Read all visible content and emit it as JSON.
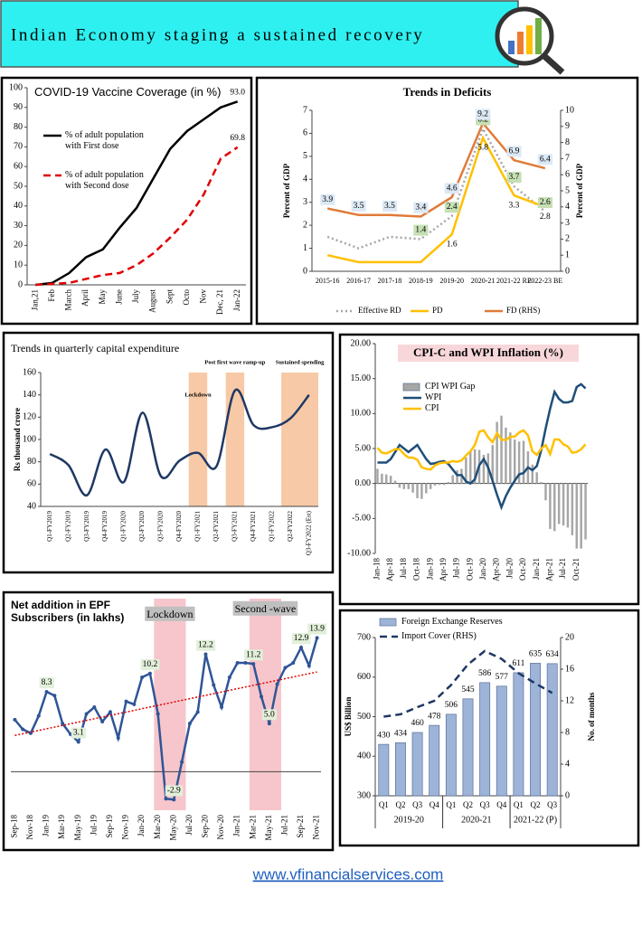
{
  "header": {
    "title": "Indian Economy staging a sustained recovery"
  },
  "footer": {
    "url": "www.vfinancialservices.com"
  },
  "chart_data": [
    {
      "type": "line",
      "title": "COVID-19 Vaccine Coverage (in %)",
      "categories": [
        "Jan,21",
        "Feb",
        "March",
        "April",
        "May",
        "June",
        "July",
        "August",
        "Sept",
        "Octo",
        "Nov",
        "Dec, 21",
        "Jan-22"
      ],
      "ylim": [
        0,
        100
      ],
      "yticks": [
        0,
        10,
        20,
        30,
        40,
        50,
        60,
        70,
        80,
        90,
        100
      ],
      "series": [
        {
          "name": "% of adult population with First dose",
          "color": "#000000",
          "values": [
            0,
            1,
            6,
            14,
            18,
            29,
            39,
            54,
            69,
            78,
            84,
            90,
            93
          ],
          "value_labels": [
            null,
            null,
            null,
            null,
            null,
            null,
            null,
            null,
            null,
            null,
            null,
            null,
            "93.0"
          ]
        },
        {
          "name": "% of adult population with Second dose",
          "color": "#e00000",
          "dash": "dashed",
          "values": [
            0,
            0.5,
            1,
            3,
            5,
            6,
            10,
            16,
            24,
            33,
            46,
            64,
            69.8
          ],
          "value_labels": [
            null,
            null,
            null,
            null,
            null,
            null,
            null,
            null,
            null,
            null,
            null,
            null,
            "69.8"
          ]
        }
      ]
    },
    {
      "type": "line",
      "title": "Trends in Deficits",
      "categories": [
        "2015-16",
        "2016-17",
        "2017-18",
        "2018-19",
        "2019-20",
        "2020-21",
        "2021-22 RE",
        "2022-23 BE"
      ],
      "ylim": [
        0,
        7
      ],
      "yticks": [
        0,
        1,
        2,
        3,
        4,
        5,
        6,
        7
      ],
      "ylabel": "Percent of GDP",
      "y2lim": [
        0,
        10
      ],
      "y2ticks": [
        0,
        1,
        2,
        3,
        4,
        5,
        6,
        7,
        8,
        9,
        10
      ],
      "y2label": "Percent of GDP",
      "series": [
        {
          "name": "Effective RD",
          "color": "#a6a6a6",
          "dash": "dotted",
          "values": [
            1.5,
            1.0,
            1.5,
            1.4,
            2.4,
            6.2,
            3.7,
            2.6
          ],
          "value_labels": [
            null,
            null,
            null,
            "1.4",
            "2.4",
            "6.2",
            "3.7",
            "2.6"
          ],
          "label_color": "#c6e0b4"
        },
        {
          "name": "PD",
          "color": "#ffc000",
          "values": [
            0.7,
            0.4,
            0.4,
            0.4,
            1.6,
            5.8,
            3.3,
            2.8
          ],
          "value_labels": [
            null,
            null,
            null,
            null,
            "1.6",
            "5.8",
            "3.3",
            "2.8"
          ],
          "label_position": "below"
        },
        {
          "name": "FD (RHS)",
          "color": "#e07b39",
          "axis": "y2",
          "values": [
            3.9,
            3.5,
            3.5,
            3.4,
            4.6,
            9.2,
            6.9,
            6.4
          ],
          "data_labels": true,
          "label_color": "#dce9f5"
        }
      ]
    },
    {
      "type": "line",
      "title": "Trends in quarterly capital expenditure",
      "smooth": true,
      "categories": [
        "Q1-FY2019",
        "Q2-FY2019",
        "Q3-FY2019",
        "Q4-FY2019",
        "Q1-FY2020",
        "Q2-FY2020",
        "Q3-FY2020",
        "Q4-FY2020",
        "Q1-FY2021",
        "Q2-FY2021",
        "Q3-FY2021",
        "Q4-FY2021",
        "Q1-FY2022",
        "Q2-FY2022",
        "Q3-FY2022 (Est)"
      ],
      "ylim": [
        40,
        160
      ],
      "yticks": [
        40,
        60,
        80,
        100,
        120,
        140,
        160
      ],
      "ylabel": "Rs thousand crore",
      "band_color": "#f7c9a6",
      "annotations": [
        {
          "text": "Lockdown",
          "span": [
            8,
            8
          ]
        },
        {
          "text": "Post first wave ramp-up",
          "span": [
            10,
            10
          ]
        },
        {
          "text": "Sustained spending",
          "span": [
            13,
            14
          ]
        }
      ],
      "series": [
        {
          "name": "Capital expenditure",
          "color": "#1f3864",
          "values": [
            87,
            77,
            50,
            91,
            62,
            124,
            67,
            81,
            88,
            76,
            144,
            113,
            111,
            119,
            140
          ]
        }
      ]
    },
    {
      "type": "combo",
      "title": "CPI-C and WPI Inflation (%)",
      "categories": [
        "Jan-18",
        null,
        null,
        "Apr-18",
        null,
        null,
        "Jul-18",
        null,
        null,
        "Oct-18",
        null,
        null,
        "Jan-19",
        null,
        null,
        "Apr-19",
        null,
        null,
        "Jul-19",
        null,
        null,
        "Oct-19",
        null,
        null,
        "Jan-20",
        null,
        null,
        "Apr-20",
        null,
        null,
        "Jul-20",
        null,
        null,
        "Oct-20",
        null,
        null,
        "Jan-21",
        null,
        null,
        "Apr-21",
        null,
        null,
        "Jul-21",
        null,
        null,
        "Oct-21",
        null,
        null
      ],
      "ylim": [
        -10,
        20
      ],
      "yticks": [
        {
          "value": -10,
          "label": "-10.00"
        },
        {
          "value": -5,
          "label": "-5.00"
        },
        {
          "value": 0,
          "label": "0.00"
        },
        {
          "value": 5,
          "label": "5.00"
        },
        {
          "value": 10,
          "label": "10.00"
        },
        {
          "value": 15,
          "label": "15.00"
        },
        {
          "value": 20,
          "label": "20.00"
        }
      ],
      "series": [
        {
          "name": "CPI WPI Gap",
          "type": "bar",
          "color": "#a6a6a6",
          "values": [
            2.1,
            1.4,
            1.3,
            1.1,
            0.4,
            -0.6,
            -0.8,
            -0.8,
            -1.3,
            -2.1,
            -2.2,
            -1.4,
            -0.8,
            -0.3,
            -0.2,
            -0.2,
            0.2,
            1.2,
            1.9,
            2.1,
            3.7,
            4.6,
            4.9,
            4.8,
            4.1,
            4.3,
            5.5,
            8.8,
            9.7,
            8.0,
            7.3,
            6.3,
            6.0,
            6.1,
            4.6,
            2.7,
            1.6,
            0.2,
            -2.4,
            -6.5,
            -6.8,
            -5.8,
            -6.0,
            -6.3,
            -7.4,
            -9.3,
            -9.3,
            -8.0
          ]
        },
        {
          "name": "WPI",
          "color": "#1f4e79",
          "values": [
            3,
            3,
            3,
            3.5,
            4.5,
            5.5,
            5,
            4.5,
            5,
            5.5,
            4.5,
            3.5,
            2.8,
            2.9,
            3.1,
            3.2,
            2.8,
            2.0,
            1.2,
            1.2,
            0.3,
            0,
            0.6,
            2.6,
            3.5,
            2.3,
            0.4,
            -1.6,
            -3.4,
            -1.8,
            -0.6,
            0.4,
            1.3,
            1.5,
            2.3,
            1.9,
            2.5,
            4.8,
            7.9,
            10.7,
            13.1,
            12.1,
            11.6,
            11.6,
            11.8,
            13.8,
            14.2,
            13.6
          ]
        },
        {
          "name": "CPI",
          "color": "#ffc000",
          "values": [
            5.1,
            4.4,
            4.3,
            4.6,
            4.9,
            4.9,
            4.2,
            3.7,
            3.7,
            3.4,
            2.3,
            2.1,
            2.0,
            2.6,
            2.9,
            3.0,
            3.0,
            3.2,
            3.1,
            3.3,
            4.0,
            4.6,
            5.5,
            7.4,
            7.6,
            6.6,
            5.9,
            7.2,
            6.3,
            6.2,
            6.7,
            6.7,
            7.3,
            7.6,
            6.9,
            4.6,
            4.1,
            5.0,
            5.5,
            4.2,
            6.3,
            6.3,
            5.6,
            5.3,
            4.4,
            4.5,
            4.9,
            5.6
          ]
        }
      ]
    },
    {
      "type": "line",
      "title": "Net addition in EPF Subscribers (in lakhs)",
      "markers": true,
      "trendline": true,
      "trend_color": "#e00000",
      "categories": [
        "Sep-18",
        null,
        "Nov-18",
        null,
        "Jan-19",
        null,
        "Mar-19",
        null,
        "May-19",
        null,
        "Jul-19",
        null,
        "Sep-19",
        null,
        "Nov-19",
        null,
        "Jan-20",
        null,
        "Mar-20",
        null,
        "May-20",
        null,
        "Jul-20",
        null,
        "Sep-20",
        null,
        "Nov-20",
        null,
        "Jan-21",
        null,
        "Mar-21",
        null,
        "May-21",
        null,
        "Jul-21",
        null,
        "Sep-21",
        null,
        "Nov-21"
      ],
      "ylim": [
        -4,
        16
      ],
      "band_color": "#f6c6cc",
      "annotations": [
        {
          "text": "Lockdown",
          "span": [
            18,
            21
          ]
        },
        {
          "text": "Second -wave",
          "span": [
            30,
            33
          ]
        }
      ],
      "series": [
        {
          "name": "Net addition",
          "color": "#2f5597",
          "label_color": "#e2efd9",
          "values": [
            5.4,
            4.4,
            4.0,
            5.8,
            8.3,
            7.9,
            5.0,
            3.9,
            3.1,
            6.0,
            6.7,
            5.2,
            6.2,
            3.5,
            7.3,
            7.0,
            9.8,
            10.2,
            6.0,
            -2.8,
            -2.9,
            1.0,
            5.0,
            6.2,
            12.2,
            9.0,
            6.7,
            9.8,
            11.3,
            11.3,
            11.2,
            7.8,
            5.0,
            9.1,
            10.8,
            11.3,
            12.9,
            11.0,
            13.9
          ],
          "value_labels": [
            null,
            null,
            null,
            null,
            "8.3",
            null,
            null,
            null,
            "3.1",
            null,
            null,
            null,
            null,
            null,
            null,
            null,
            null,
            "10.2",
            null,
            null,
            "-2.9",
            null,
            null,
            null,
            "12.2",
            null,
            null,
            null,
            null,
            null,
            "11.2",
            null,
            "5.0",
            null,
            null,
            null,
            "12.9",
            null,
            "13.9"
          ]
        }
      ]
    },
    {
      "type": "combo",
      "categories": [
        "Q1",
        "Q2",
        "Q3",
        "Q4",
        "Q1",
        "Q2",
        "Q3",
        "Q4",
        "Q1",
        "Q2",
        "Q3"
      ],
      "groups": [
        {
          "label": "2019-20",
          "span": 4
        },
        {
          "label": "2020-21",
          "span": 4
        },
        {
          "label": "2021-22 (P)",
          "span": 3
        }
      ],
      "ylim": [
        300,
        700
      ],
      "yticks": [
        300,
        400,
        500,
        600,
        700
      ],
      "ylabel": "US$ Billion",
      "y2lim": [
        0,
        20
      ],
      "y2ticks": [
        0,
        4,
        8,
        12,
        16,
        20
      ],
      "y2label": "No. of months",
      "series": [
        {
          "name": "Foreign Exchange Reserves",
          "type": "bar",
          "color": "#9db4d8",
          "values": [
            430,
            434,
            460,
            478,
            506,
            545,
            586,
            577,
            611,
            635,
            634
          ],
          "data_labels": true
        },
        {
          "name": "Import Cover (RHS)",
          "color": "#1f3864",
          "dash": "dashed",
          "axis": "y2",
          "values": [
            10,
            10.3,
            11.2,
            12,
            14,
            16.6,
            18.3,
            17.3,
            15.5,
            14.2,
            13
          ]
        }
      ]
    }
  ]
}
